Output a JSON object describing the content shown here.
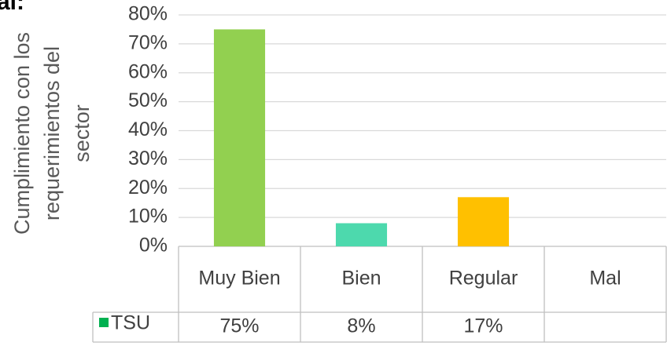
{
  "chart_data": {
    "type": "bar",
    "title": "al:",
    "y_label": [
      "Cumplimiento con los",
      "requerimientos del",
      "sector"
    ],
    "categories": [
      "Muy Bien",
      "Bien",
      "Regular",
      "Mal"
    ],
    "series": [
      {
        "name": "TSU",
        "color": "#00b050",
        "colors": [
          "#92d050",
          "#4dd9ad",
          "#ffc000",
          null
        ],
        "values": [
          75,
          8,
          17,
          null
        ],
        "value_labels": [
          "75%",
          "8%",
          "17%",
          null
        ]
      }
    ],
    "ylim": [
      0,
      80
    ],
    "yticks": [
      {
        "value": 0,
        "label": "0%"
      },
      {
        "value": 10,
        "label": "10%"
      },
      {
        "value": 20,
        "label": "20%"
      },
      {
        "value": 30,
        "label": "30%"
      },
      {
        "value": 40,
        "label": "40%"
      },
      {
        "value": 50,
        "label": "50%"
      },
      {
        "value": 60,
        "label": "60%"
      },
      {
        "value": 70,
        "label": "70%"
      },
      {
        "value": 80,
        "label": "80%"
      }
    ],
    "grid": true,
    "data_table": true
  }
}
